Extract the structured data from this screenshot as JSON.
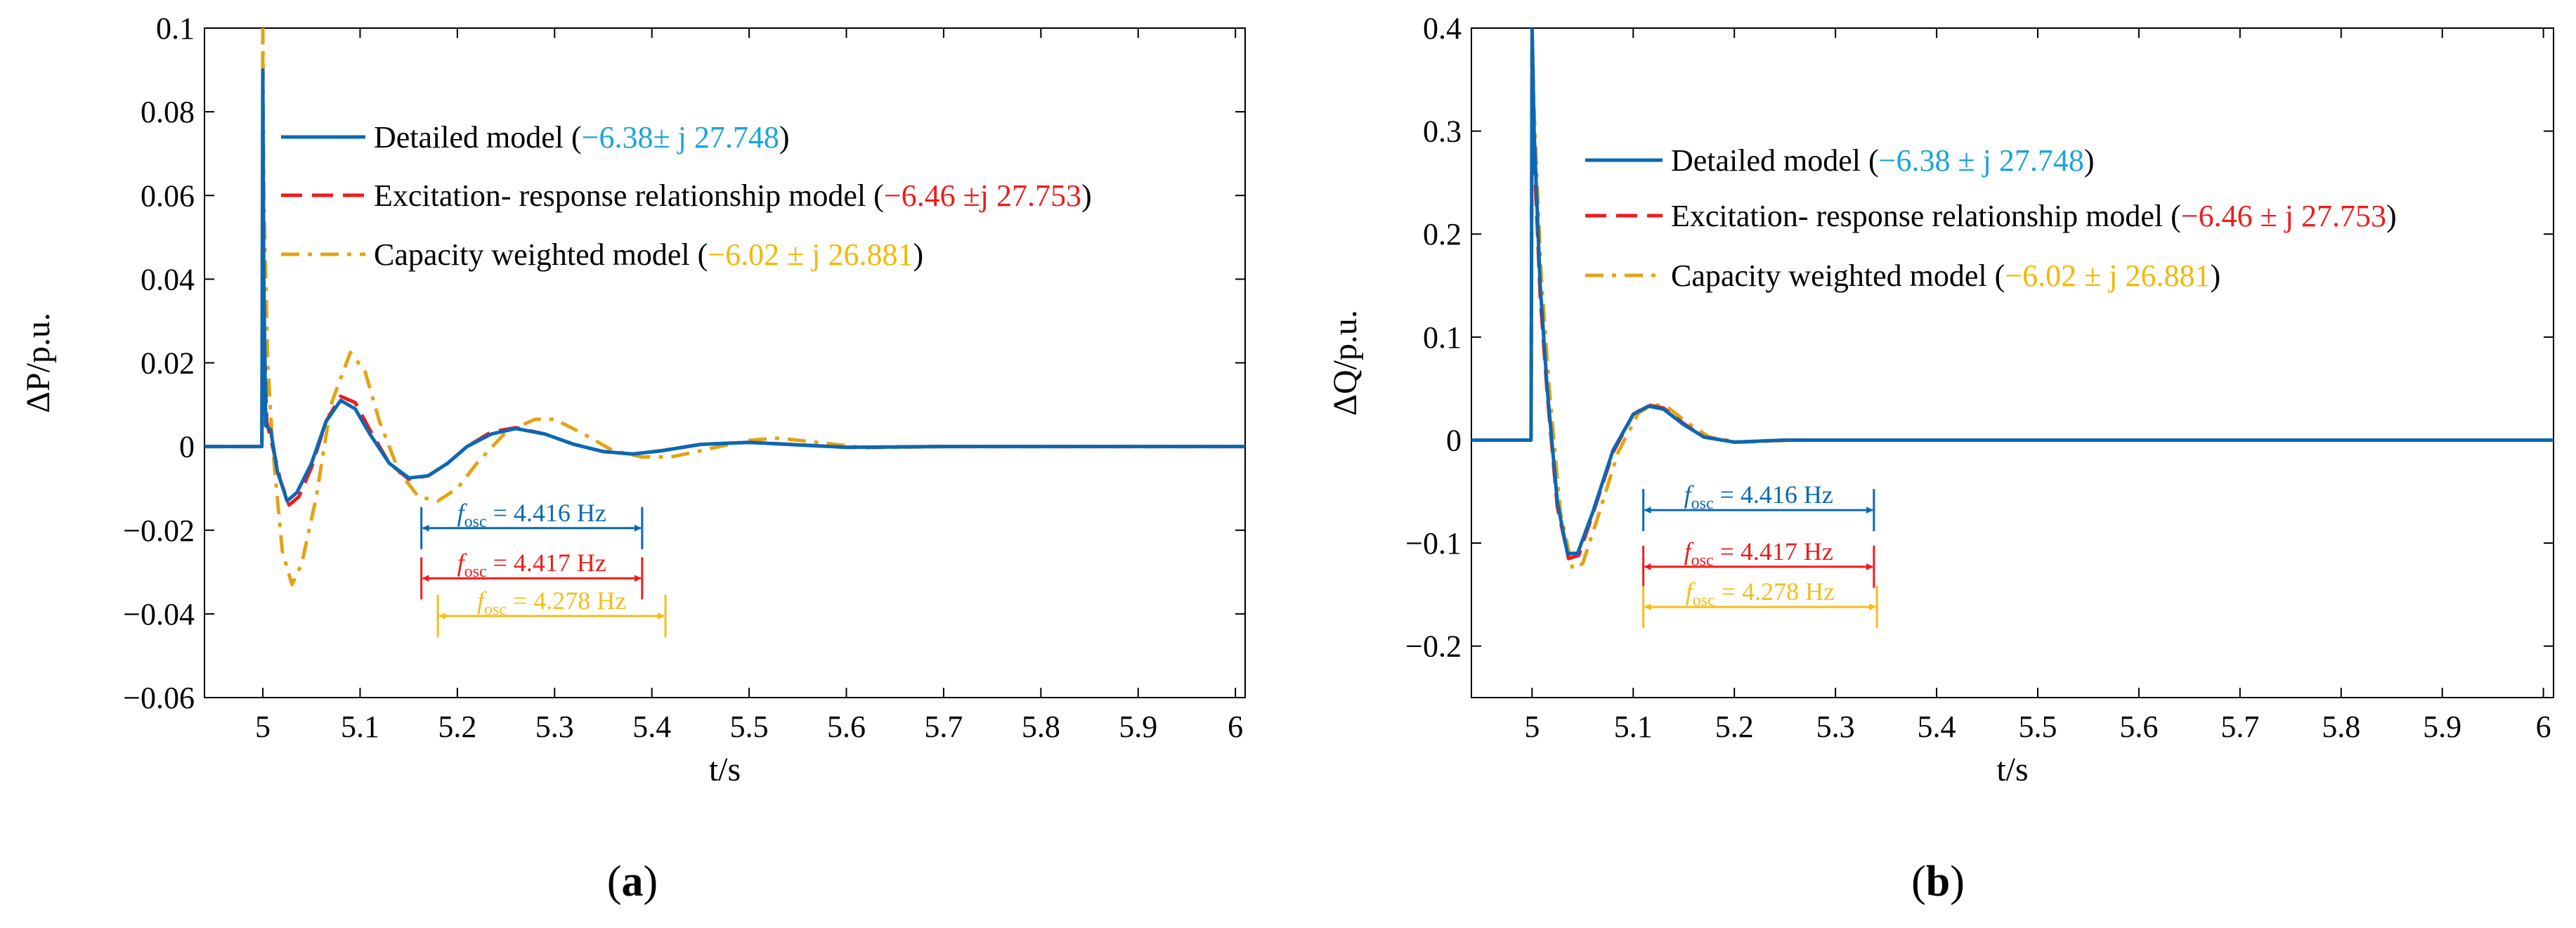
{
  "colors": {
    "detailed": "#0b68b4",
    "excitation": "#ee1c1c",
    "capacity": "#e3a414",
    "value_cyan": "#1aa3de",
    "value_red": "#ee1c1c",
    "value_yellow": "#f2b800",
    "f_blue": "#0b68b4",
    "f_red": "#ee1c1c",
    "f_yellow": "#f5bd1a"
  },
  "chart_data": [
    {
      "type": "line",
      "panel_label": "(a)",
      "xlabel": "t/s",
      "ylabel": "ΔP/p.u.",
      "xlim": [
        4.94,
        6.01
      ],
      "ylim": [
        -0.06,
        0.1
      ],
      "xticks": [
        5,
        5.1,
        5.2,
        5.3,
        5.4,
        5.5,
        5.6,
        5.7,
        5.8,
        5.9,
        6
      ],
      "xtick_labels": [
        "5",
        "5.1",
        "5.2",
        "5.3",
        "5.4",
        "5.5",
        "5.6",
        "5.7",
        "5.8",
        "5.9",
        "6"
      ],
      "yticks": [
        -0.06,
        -0.04,
        -0.02,
        0,
        0.02,
        0.04,
        0.06,
        0.08,
        0.1
      ],
      "ytick_labels": [
        "−0.06",
        "−0.04",
        "−0.02",
        "0",
        "0.02",
        "0.04",
        "0.06",
        "0.08",
        "0.1"
      ],
      "grid": false,
      "legend_position": "top-center",
      "series": [
        {
          "name": "Detailed model",
          "value_text": "(−6.38± j 27.748)",
          "style": "solid",
          "color_key": "detailed",
          "points": [
            [
              4.94,
              0
            ],
            [
              4.999,
              0
            ],
            [
              5.0,
              0.09
            ],
            [
              5.001,
              0.04
            ],
            [
              5.003,
              0.005
            ],
            [
              5.008,
              0.004
            ],
            [
              5.015,
              -0.006
            ],
            [
              5.025,
              -0.013
            ],
            [
              5.035,
              -0.011
            ],
            [
              5.05,
              -0.004
            ],
            [
              5.065,
              0.006
            ],
            [
              5.08,
              0.011
            ],
            [
              5.095,
              0.009
            ],
            [
              5.11,
              0.003
            ],
            [
              5.13,
              -0.004
            ],
            [
              5.15,
              -0.0075
            ],
            [
              5.17,
              -0.007
            ],
            [
              5.19,
              -0.004
            ],
            [
              5.21,
              0.0
            ],
            [
              5.235,
              0.003
            ],
            [
              5.26,
              0.0043
            ],
            [
              5.29,
              0.003
            ],
            [
              5.32,
              0.0005
            ],
            [
              5.35,
              -0.0012
            ],
            [
              5.38,
              -0.0018
            ],
            [
              5.41,
              -0.001
            ],
            [
              5.45,
              0.0005
            ],
            [
              5.5,
              0.001
            ],
            [
              5.55,
              0.0004
            ],
            [
              5.6,
              -0.0002
            ],
            [
              5.7,
              0.0
            ],
            [
              6.01,
              0.0
            ]
          ]
        },
        {
          "name": "Excitation- response relationship model",
          "value_text": "(−6.46 ±j 27.753)",
          "style": "dashed",
          "color_key": "excitation",
          "points": [
            [
              4.94,
              0
            ],
            [
              4.999,
              0
            ],
            [
              5.0,
              0.06
            ],
            [
              5.001,
              0.03
            ],
            [
              5.004,
              0.006
            ],
            [
              5.01,
              0.0
            ],
            [
              5.018,
              -0.008
            ],
            [
              5.027,
              -0.014
            ],
            [
              5.037,
              -0.012
            ],
            [
              5.05,
              -0.005
            ],
            [
              5.065,
              0.006
            ],
            [
              5.08,
              0.012
            ],
            [
              5.095,
              0.0105
            ],
            [
              5.11,
              0.004
            ],
            [
              5.13,
              -0.004
            ],
            [
              5.15,
              -0.0078
            ],
            [
              5.17,
              -0.007
            ],
            [
              5.19,
              -0.004
            ],
            [
              5.21,
              0.0
            ],
            [
              5.235,
              0.0035
            ],
            [
              5.26,
              0.0045
            ],
            [
              5.29,
              0.003
            ],
            [
              5.32,
              0.0005
            ],
            [
              5.35,
              -0.0012
            ],
            [
              5.38,
              -0.0018
            ],
            [
              5.41,
              -0.001
            ],
            [
              5.45,
              0.0005
            ],
            [
              5.5,
              0.001
            ],
            [
              5.55,
              0.0004
            ],
            [
              5.6,
              -0.0002
            ],
            [
              5.7,
              0.0
            ],
            [
              6.01,
              0.0
            ]
          ]
        },
        {
          "name": "Capacity weighted model",
          "value_text": "(−6.02 ± j 26.881)",
          "style": "dashdot",
          "color_key": "capacity",
          "points": [
            [
              4.94,
              0
            ],
            [
              4.999,
              0
            ],
            [
              5.0,
              0.1
            ],
            [
              5.001,
              0.06
            ],
            [
              5.005,
              0.02
            ],
            [
              5.01,
              0.0
            ],
            [
              5.02,
              -0.025
            ],
            [
              5.03,
              -0.033
            ],
            [
              5.04,
              -0.028
            ],
            [
              5.055,
              -0.012
            ],
            [
              5.07,
              0.01
            ],
            [
              5.09,
              0.0225
            ],
            [
              5.105,
              0.018
            ],
            [
              5.12,
              0.006
            ],
            [
              5.14,
              -0.006
            ],
            [
              5.16,
              -0.012
            ],
            [
              5.18,
              -0.013
            ],
            [
              5.2,
              -0.01
            ],
            [
              5.22,
              -0.004
            ],
            [
              5.25,
              0.0035
            ],
            [
              5.28,
              0.0065
            ],
            [
              5.3,
              0.0065
            ],
            [
              5.33,
              0.003
            ],
            [
              5.36,
              -0.001
            ],
            [
              5.39,
              -0.0025
            ],
            [
              5.42,
              -0.0025
            ],
            [
              5.45,
              -0.001
            ],
            [
              5.5,
              0.0015
            ],
            [
              5.53,
              0.002
            ],
            [
              5.57,
              0.001
            ],
            [
              5.62,
              -0.0003
            ],
            [
              5.7,
              0.0
            ],
            [
              6.01,
              0.0
            ]
          ]
        }
      ],
      "annotations": [
        {
          "label_f": "f",
          "label_sub": "osc",
          "text": " = 4.416 Hz",
          "x1": 5.163,
          "x2": 5.39,
          "y": -0.0195,
          "color_key": "f_blue"
        },
        {
          "label_f": "f",
          "label_sub": "osc",
          "text": " = 4.417 Hz",
          "x1": 5.163,
          "x2": 5.39,
          "y": -0.0315,
          "color_key": "f_red"
        },
        {
          "label_f": "f",
          "label_sub": "osc",
          "text": " = 4.278 Hz",
          "x1": 5.18,
          "x2": 5.414,
          "y": -0.0405,
          "color_key": "f_yellow"
        }
      ]
    },
    {
      "type": "line",
      "panel_label": "(b)",
      "xlabel": "t/s",
      "ylabel": "ΔQ/p.u.",
      "xlim": [
        4.94,
        6.01
      ],
      "ylim": [
        -0.25,
        0.4
      ],
      "xticks": [
        5,
        5.1,
        5.2,
        5.3,
        5.4,
        5.5,
        5.6,
        5.7,
        5.8,
        5.9,
        6
      ],
      "xtick_labels": [
        "5",
        "5.1",
        "5.2",
        "5.3",
        "5.4",
        "5.5",
        "5.6",
        "5.7",
        "5.8",
        "5.9",
        "6"
      ],
      "yticks": [
        -0.2,
        -0.1,
        0,
        0.1,
        0.2,
        0.3,
        0.4
      ],
      "ytick_labels": [
        "−0.2",
        "−0.1",
        "0",
        "0.1",
        "0.2",
        "0.3",
        "0.4"
      ],
      "grid": false,
      "legend_position": "top-center",
      "series": [
        {
          "name": "Detailed model",
          "value_text": "(−6.38 ± j 27.748)",
          "style": "solid",
          "color_key": "detailed",
          "points": [
            [
              4.94,
              0
            ],
            [
              4.999,
              0
            ],
            [
              5.0,
              0.4
            ],
            [
              5.002,
              0.3
            ],
            [
              5.008,
              0.15
            ],
            [
              5.015,
              0.05
            ],
            [
              5.025,
              -0.06
            ],
            [
              5.035,
              -0.11
            ],
            [
              5.045,
              -0.11
            ],
            [
              5.06,
              -0.07
            ],
            [
              5.08,
              -0.01
            ],
            [
              5.1,
              0.025
            ],
            [
              5.115,
              0.033
            ],
            [
              5.13,
              0.03
            ],
            [
              5.15,
              0.015
            ],
            [
              5.17,
              0.003
            ],
            [
              5.2,
              -0.002
            ],
            [
              5.25,
              0.0
            ],
            [
              6.01,
              0.0
            ]
          ]
        },
        {
          "name": "Excitation- response relationship model",
          "value_text": "(−6.46 ± j 27.753)",
          "style": "dashed",
          "color_key": "excitation",
          "points": [
            [
              4.94,
              0
            ],
            [
              4.999,
              0
            ],
            [
              5.0,
              0.38
            ],
            [
              5.002,
              0.28
            ],
            [
              5.008,
              0.14
            ],
            [
              5.015,
              0.045
            ],
            [
              5.025,
              -0.065
            ],
            [
              5.036,
              -0.115
            ],
            [
              5.046,
              -0.112
            ],
            [
              5.06,
              -0.072
            ],
            [
              5.08,
              -0.012
            ],
            [
              5.1,
              0.025
            ],
            [
              5.115,
              0.034
            ],
            [
              5.13,
              0.031
            ],
            [
              5.15,
              0.016
            ],
            [
              5.17,
              0.003
            ],
            [
              5.2,
              -0.002
            ],
            [
              5.25,
              0.0
            ],
            [
              6.01,
              0.0
            ]
          ]
        },
        {
          "name": "Capacity weighted model",
          "value_text": "(−6.02 ± j 26.881)",
          "style": "dashdot",
          "color_key": "capacity",
          "points": [
            [
              4.94,
              0
            ],
            [
              4.999,
              0
            ],
            [
              5.0,
              0.4
            ],
            [
              5.002,
              0.32
            ],
            [
              5.009,
              0.16
            ],
            [
              5.017,
              0.05
            ],
            [
              5.028,
              -0.07
            ],
            [
              5.04,
              -0.125
            ],
            [
              5.05,
              -0.12
            ],
            [
              5.065,
              -0.075
            ],
            [
              5.085,
              -0.012
            ],
            [
              5.105,
              0.026
            ],
            [
              5.12,
              0.035
            ],
            [
              5.135,
              0.031
            ],
            [
              5.155,
              0.016
            ],
            [
              5.175,
              0.003
            ],
            [
              5.205,
              -0.002
            ],
            [
              5.26,
              0.0
            ],
            [
              6.01,
              0.0
            ]
          ]
        }
      ],
      "annotations": [
        {
          "label_f": "f",
          "label_sub": "osc",
          "text": " = 4.416 Hz",
          "x1": 5.11,
          "x2": 5.338,
          "y": -0.068,
          "color_key": "f_blue"
        },
        {
          "label_f": "f",
          "label_sub": "osc",
          "text": " = 4.417 Hz",
          "x1": 5.11,
          "x2": 5.338,
          "y": -0.123,
          "color_key": "f_red"
        },
        {
          "label_f": "f",
          "label_sub": "osc",
          "text": " = 4.278 Hz",
          "x1": 5.11,
          "x2": 5.341,
          "y": -0.162,
          "color_key": "f_yellow"
        }
      ]
    }
  ]
}
